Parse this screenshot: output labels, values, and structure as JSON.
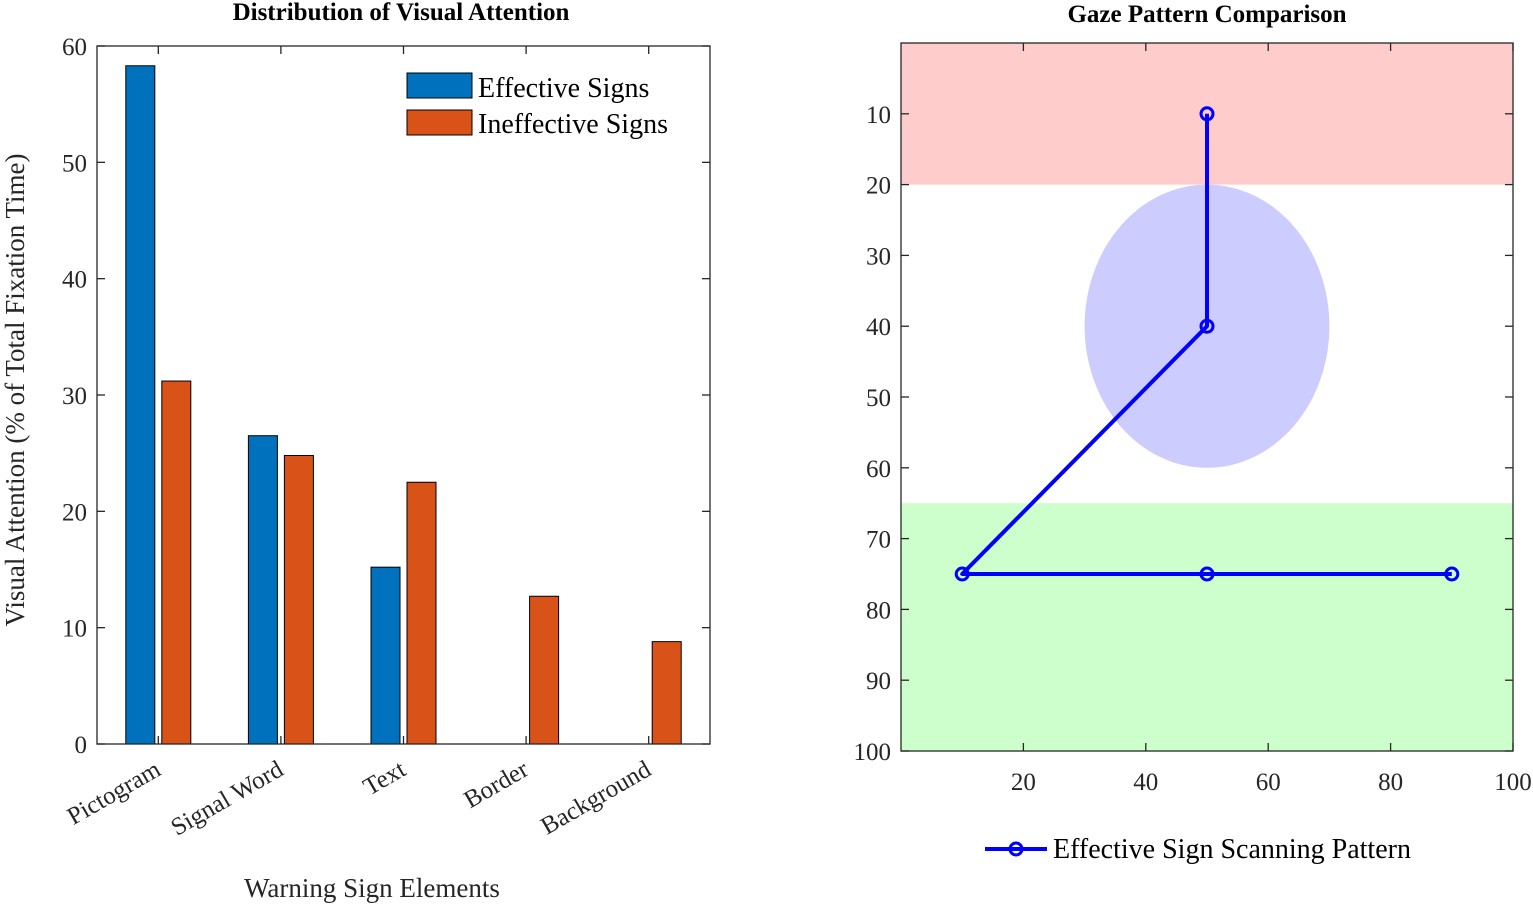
{
  "chart_data": [
    {
      "type": "bar",
      "title": "Distribution of Visual Attention",
      "xlabel": "Warning Sign Elements",
      "ylabel": "Visual Attention (% of Total Fixation Time)",
      "ylim": [
        0,
        60
      ],
      "yticks": [
        0,
        10,
        20,
        30,
        40,
        50,
        60
      ],
      "categories": [
        "Pictogram",
        "Signal Word",
        "Text",
        "Border",
        "Background"
      ],
      "series": [
        {
          "name": "Effective Signs",
          "color": "#0072BD",
          "values": [
            58.3,
            26.5,
            15.2,
            0,
            0
          ]
        },
        {
          "name": "Ineffective Signs",
          "color": "#D95319",
          "values": [
            31.2,
            24.8,
            22.5,
            12.7,
            8.8
          ]
        }
      ],
      "legend": "top-right"
    },
    {
      "type": "line",
      "title": "Gaze Pattern Comparison",
      "xlim": [
        0,
        100
      ],
      "ylim": [
        100,
        0
      ],
      "xticks": [
        20,
        40,
        60,
        80,
        100
      ],
      "yticks": [
        10,
        20,
        30,
        40,
        50,
        60,
        70,
        80,
        90,
        100
      ],
      "regions": [
        {
          "name": "top-band",
          "y": [
            0,
            20
          ],
          "color": "#FFCCCC"
        },
        {
          "name": "circle",
          "center": [
            50,
            40
          ],
          "radius": 20,
          "color": "#CCCCFF"
        },
        {
          "name": "bottom-band",
          "y": [
            65,
            100
          ],
          "color": "#CCFFCC"
        }
      ],
      "series": [
        {
          "name": "Effective Sign Scanning Pattern",
          "color": "#0000FF",
          "x": [
            50,
            50,
            10,
            50,
            90
          ],
          "y": [
            10,
            40,
            75,
            75,
            75
          ]
        }
      ],
      "legend": "bottom-outside"
    }
  ]
}
